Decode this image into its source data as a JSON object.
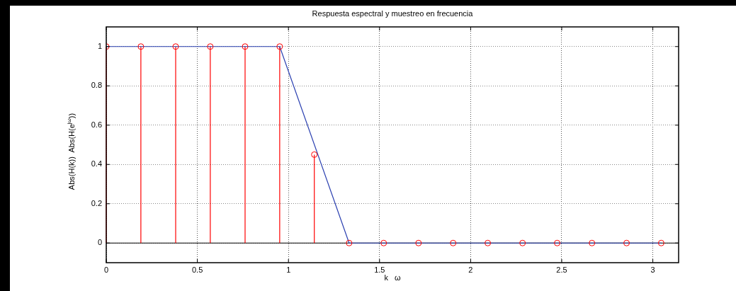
{
  "chart_data": {
    "type": "line",
    "title": "Respuesta espectral y muestreo en frecuencia",
    "xlabel": "k   ω",
    "ylabel": "Abs(H(k))  Abs(H(e$^{jω}$))",
    "series": [
      {
        "type": "lollipop",
        "color": "#ff0000",
        "marker": "circle",
        "x": [
          0,
          0.19,
          0.381,
          0.571,
          0.762,
          0.952,
          1.142,
          1.333,
          1.523,
          1.714,
          1.904,
          2.094,
          2.285,
          2.475,
          2.666,
          2.856,
          3.046
        ],
        "values": [
          1,
          1,
          1,
          1,
          1,
          1,
          0.45,
          0,
          0,
          0,
          0,
          0,
          0,
          0,
          0,
          0,
          0
        ]
      },
      {
        "color": "#2a3fb0",
        "marker": "none",
        "x": [
          0,
          0.952,
          1.333,
          3.046
        ],
        "values": [
          1,
          1,
          0,
          0
        ]
      }
    ],
    "xlim": [
      0,
      3.1416
    ],
    "xticks": [
      0,
      0.5,
      1,
      1.5,
      2,
      2.5,
      3
    ],
    "ylim": [
      -0.1,
      1.1
    ],
    "yticks": [
      0,
      0.2,
      0.4,
      0.6,
      0.8,
      1
    ],
    "ref_lines": [
      {
        "axis": "y",
        "value": 0,
        "color": "#000000"
      }
    ],
    "grid": true,
    "legend": false
  }
}
